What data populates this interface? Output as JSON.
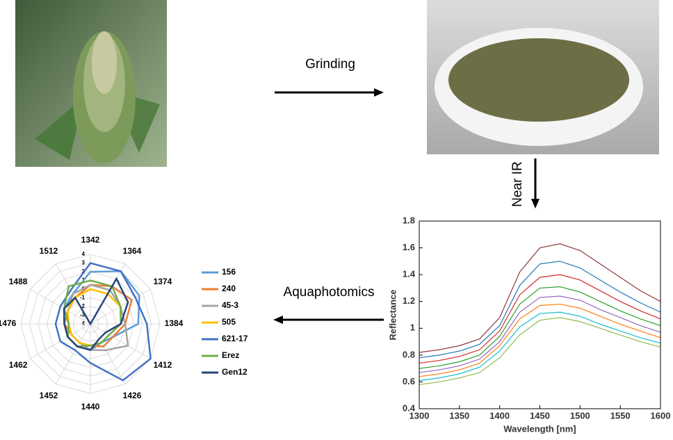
{
  "steps": {
    "grinding": "Grinding",
    "near_ir": "Near IR",
    "aquaphotomics": "Aquaphotomics"
  },
  "chart_data": [
    {
      "type": "line",
      "xlabel": "Wavelength [nm]",
      "ylabel": "Reflectance",
      "x": [
        1300,
        1325,
        1350,
        1375,
        1400,
        1425,
        1450,
        1475,
        1500,
        1525,
        1550,
        1575,
        1600
      ],
      "series": [
        {
          "color": "#8b3a3a",
          "values": [
            0.82,
            0.84,
            0.87,
            0.92,
            1.08,
            1.42,
            1.6,
            1.63,
            1.58,
            1.48,
            1.38,
            1.28,
            1.2
          ]
        },
        {
          "color": "#1f77b4",
          "values": [
            0.78,
            0.8,
            0.83,
            0.88,
            1.02,
            1.32,
            1.48,
            1.5,
            1.45,
            1.36,
            1.27,
            1.19,
            1.12
          ]
        },
        {
          "color": "#d62728",
          "values": [
            0.74,
            0.76,
            0.79,
            0.84,
            0.98,
            1.25,
            1.38,
            1.4,
            1.36,
            1.28,
            1.2,
            1.13,
            1.07
          ]
        },
        {
          "color": "#2ca02c",
          "values": [
            0.7,
            0.72,
            0.75,
            0.8,
            0.94,
            1.18,
            1.3,
            1.31,
            1.27,
            1.2,
            1.13,
            1.07,
            1.02
          ]
        },
        {
          "color": "#9467bd",
          "values": [
            0.67,
            0.69,
            0.72,
            0.77,
            0.9,
            1.12,
            1.23,
            1.24,
            1.21,
            1.14,
            1.08,
            1.02,
            0.97
          ]
        },
        {
          "color": "#ff7f0e",
          "values": [
            0.64,
            0.66,
            0.69,
            0.74,
            0.87,
            1.07,
            1.17,
            1.18,
            1.15,
            1.09,
            1.03,
            0.98,
            0.93
          ]
        },
        {
          "color": "#17becf",
          "values": [
            0.61,
            0.63,
            0.66,
            0.71,
            0.83,
            1.01,
            1.11,
            1.12,
            1.09,
            1.03,
            0.98,
            0.93,
            0.89
          ]
        },
        {
          "color": "#8fbc4f",
          "values": [
            0.58,
            0.6,
            0.63,
            0.67,
            0.78,
            0.95,
            1.06,
            1.08,
            1.05,
            1.0,
            0.95,
            0.9,
            0.86
          ]
        }
      ],
      "xlim": [
        1300,
        1600
      ],
      "xticks": [
        1300,
        1350,
        1400,
        1450,
        1500,
        1550,
        1600
      ],
      "ylim": [
        0.4,
        1.8
      ],
      "yticks": [
        0.4,
        0.6,
        0.8,
        1,
        1.2,
        1.4,
        1.6,
        1.8
      ]
    },
    {
      "type": "radar",
      "categories": [
        "1342",
        "1364",
        "1374",
        "1384",
        "1412",
        "1426",
        "1440",
        "1452",
        "1462",
        "1476",
        "1488",
        "1512"
      ],
      "series": [
        {
          "name": "156",
          "color": "#5b9bd5",
          "values": [
            2,
            3,
            2.5,
            1.5,
            -1,
            -1.5,
            -1,
            -1,
            -1,
            -1,
            -0.5,
            0
          ]
        },
        {
          "name": "240",
          "color": "#ed7d31",
          "values": [
            0.5,
            1,
            1.5,
            0,
            -1,
            -1,
            -1.5,
            -1.5,
            -1.5,
            -1,
            -1,
            -0.5
          ]
        },
        {
          "name": "45-3",
          "color": "#a5a5a5",
          "values": [
            0.5,
            0.5,
            0,
            0,
            1,
            -0.5,
            -1,
            -1.5,
            -1.5,
            -1.5,
            -1,
            0
          ]
        },
        {
          "name": "505",
          "color": "#ffc000",
          "values": [
            0,
            0,
            0,
            -0.5,
            -1.5,
            -1.5,
            -1.5,
            -1.5,
            -1.5,
            -1.5,
            -1,
            -0.5
          ]
        },
        {
          "name": "621-17",
          "color": "#4472c4",
          "values": [
            3,
            3,
            2,
            2.5,
            4,
            3.5,
            0.5,
            -0.5,
            0,
            0,
            0,
            0.5
          ]
        },
        {
          "name": "Erez",
          "color": "#70ad47",
          "values": [
            1,
            1,
            0,
            -0.5,
            -1.5,
            -1.5,
            -1.5,
            -1,
            -1,
            -1.5,
            -0.5,
            1
          ]
        },
        {
          "name": "Gen12",
          "color": "#264478",
          "values": [
            -4,
            2,
            1,
            -0.5,
            -2,
            -2,
            -1,
            -1,
            -1,
            -1,
            -0.5,
            -0.5
          ]
        }
      ],
      "rlim": [
        -4,
        4
      ],
      "rticks": [
        -4,
        -3,
        -2,
        -1,
        0,
        1,
        2,
        3,
        4
      ]
    }
  ]
}
